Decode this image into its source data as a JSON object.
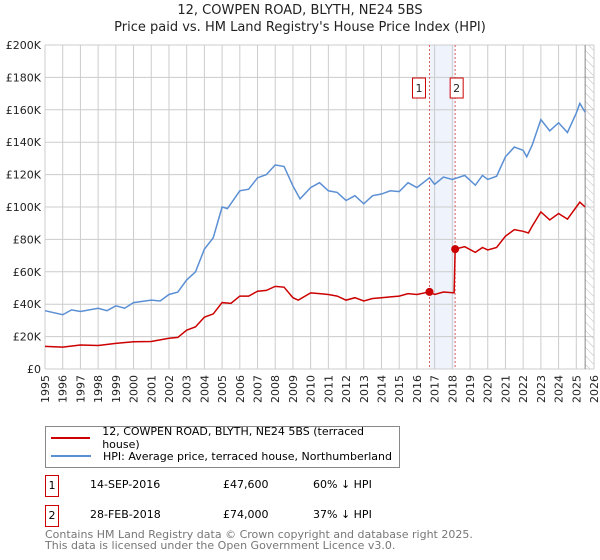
{
  "chart_data": {
    "type": "line",
    "title": "12, COWPEN ROAD, BLYTH, NE24 5BS",
    "subtitle": "Price paid vs. HM Land Registry's House Price Index (HPI)",
    "xlim": [
      1995,
      2026
    ],
    "ylim": [
      0,
      200000
    ],
    "x_ticks": [
      "1995",
      "1996",
      "1997",
      "1998",
      "1999",
      "2000",
      "2001",
      "2002",
      "2003",
      "2004",
      "2005",
      "2006",
      "2007",
      "2008",
      "2009",
      "2010",
      "2011",
      "2012",
      "2013",
      "2014",
      "2015",
      "2016",
      "2017",
      "2018",
      "2019",
      "2020",
      "2021",
      "2022",
      "2023",
      "2024",
      "2025",
      "2026"
    ],
    "y_ticks": [
      {
        "v": 0,
        "label": "£0"
      },
      {
        "v": 20000,
        "label": "£20K"
      },
      {
        "v": 40000,
        "label": "£40K"
      },
      {
        "v": 60000,
        "label": "£60K"
      },
      {
        "v": 80000,
        "label": "£80K"
      },
      {
        "v": 100000,
        "label": "£100K"
      },
      {
        "v": 120000,
        "label": "£120K"
      },
      {
        "v": 140000,
        "label": "£140K"
      },
      {
        "v": 160000,
        "label": "£160K"
      },
      {
        "v": 180000,
        "label": "£180K"
      },
      {
        "v": 200000,
        "label": "£200K"
      }
    ],
    "grid": true,
    "series": [
      {
        "name": "12, COWPEN ROAD, BLYTH, NE24 5BS (terraced house)",
        "color": "#cc0000",
        "points": [
          [
            1995,
            14000
          ],
          [
            1996,
            13500
          ],
          [
            1997,
            14800
          ],
          [
            1998,
            14500
          ],
          [
            1999,
            15800
          ],
          [
            2000,
            16800
          ],
          [
            2001,
            17000
          ],
          [
            2002,
            19000
          ],
          [
            2002.5,
            19500
          ],
          [
            2003,
            24000
          ],
          [
            2003.5,
            26000
          ],
          [
            2004,
            32000
          ],
          [
            2004.5,
            34000
          ],
          [
            2005,
            41000
          ],
          [
            2005.5,
            40500
          ],
          [
            2006,
            45000
          ],
          [
            2006.5,
            45000
          ],
          [
            2007,
            48000
          ],
          [
            2007.5,
            48500
          ],
          [
            2008,
            51000
          ],
          [
            2008.5,
            50500
          ],
          [
            2009,
            44000
          ],
          [
            2009.3,
            42500
          ],
          [
            2010,
            47000
          ],
          [
            2010.5,
            46500
          ],
          [
            2011,
            46000
          ],
          [
            2011.5,
            45000
          ],
          [
            2012,
            42500
          ],
          [
            2012.5,
            44000
          ],
          [
            2013,
            42000
          ],
          [
            2013.5,
            43500
          ],
          [
            2014,
            44000
          ],
          [
            2014.5,
            44500
          ],
          [
            2015,
            45000
          ],
          [
            2015.5,
            46500
          ],
          [
            2016,
            46000
          ],
          [
            2016.71,
            47600
          ],
          [
            2017,
            46000
          ],
          [
            2017.5,
            47500
          ],
          [
            2018.1,
            47000
          ],
          [
            2018.16,
            74000
          ],
          [
            2018.7,
            75500
          ],
          [
            2019.3,
            72000
          ],
          [
            2019.7,
            75000
          ],
          [
            2020,
            73500
          ],
          [
            2020.5,
            75000
          ],
          [
            2021,
            82000
          ],
          [
            2021.5,
            86000
          ],
          [
            2022,
            85000
          ],
          [
            2022.3,
            84000
          ],
          [
            2022.5,
            88000
          ],
          [
            2023,
            97000
          ],
          [
            2023.5,
            92000
          ],
          [
            2024,
            96000
          ],
          [
            2024.5,
            92500
          ],
          [
            2025,
            100000
          ],
          [
            2025.2,
            103000
          ],
          [
            2025.5,
            100000
          ]
        ]
      },
      {
        "name": "HPI: Average price, terraced house, Northumberland",
        "color": "#5b8fd4",
        "points": [
          [
            1995,
            36000
          ],
          [
            1996,
            33500
          ],
          [
            1996.5,
            36500
          ],
          [
            1997,
            35500
          ],
          [
            1998,
            37500
          ],
          [
            1998.5,
            36000
          ],
          [
            1999,
            39000
          ],
          [
            1999.5,
            37500
          ],
          [
            2000,
            41000
          ],
          [
            2001,
            42500
          ],
          [
            2001.5,
            42000
          ],
          [
            2002,
            46000
          ],
          [
            2002.5,
            47500
          ],
          [
            2003,
            55000
          ],
          [
            2003.5,
            60000
          ],
          [
            2004,
            74000
          ],
          [
            2004.5,
            81000
          ],
          [
            2005,
            100000
          ],
          [
            2005.3,
            99000
          ],
          [
            2006,
            110000
          ],
          [
            2006.5,
            111000
          ],
          [
            2007,
            118000
          ],
          [
            2007.5,
            120000
          ],
          [
            2008,
            126000
          ],
          [
            2008.5,
            125000
          ],
          [
            2009,
            113000
          ],
          [
            2009.4,
            105000
          ],
          [
            2010,
            112000
          ],
          [
            2010.5,
            115000
          ],
          [
            2011,
            110000
          ],
          [
            2011.5,
            109000
          ],
          [
            2012,
            104000
          ],
          [
            2012.5,
            107000
          ],
          [
            2013,
            102000
          ],
          [
            2013.5,
            107000
          ],
          [
            2014,
            108000
          ],
          [
            2014.5,
            110000
          ],
          [
            2015,
            109500
          ],
          [
            2015.5,
            115000
          ],
          [
            2016,
            112000
          ],
          [
            2016.71,
            118000
          ],
          [
            2017,
            114000
          ],
          [
            2017.5,
            118500
          ],
          [
            2018,
            117000
          ],
          [
            2018.7,
            119500
          ],
          [
            2019.3,
            113500
          ],
          [
            2019.7,
            119500
          ],
          [
            2020,
            117000
          ],
          [
            2020.5,
            119000
          ],
          [
            2021,
            131000
          ],
          [
            2021.5,
            137000
          ],
          [
            2022,
            135000
          ],
          [
            2022.2,
            131000
          ],
          [
            2022.5,
            138000
          ],
          [
            2023,
            154000
          ],
          [
            2023.5,
            147000
          ],
          [
            2024,
            152000
          ],
          [
            2024.5,
            146000
          ],
          [
            2025,
            158000
          ],
          [
            2025.2,
            164000
          ],
          [
            2025.5,
            158500
          ]
        ]
      }
    ],
    "shaded_range": [
      2016.71,
      2018.16
    ],
    "forecast_hatch_from": 2025.5,
    "markers": [
      {
        "id": "1",
        "x": 2016.71,
        "y": 47600
      },
      {
        "id": "2",
        "x": 2018.16,
        "y": 74000
      }
    ],
    "legend_position": "below"
  },
  "transactions": [
    {
      "id": "1",
      "date": "14-SEP-2016",
      "price": "£47,600",
      "hpi": "60% ↓ HPI"
    },
    {
      "id": "2",
      "date": "28-FEB-2018",
      "price": "£74,000",
      "hpi": "37% ↓ HPI"
    }
  ],
  "footer": {
    "line1": "Contains HM Land Registry data © Crown copyright and database right 2025.",
    "line2": "This data is licensed under the Open Government Licence v3.0."
  }
}
